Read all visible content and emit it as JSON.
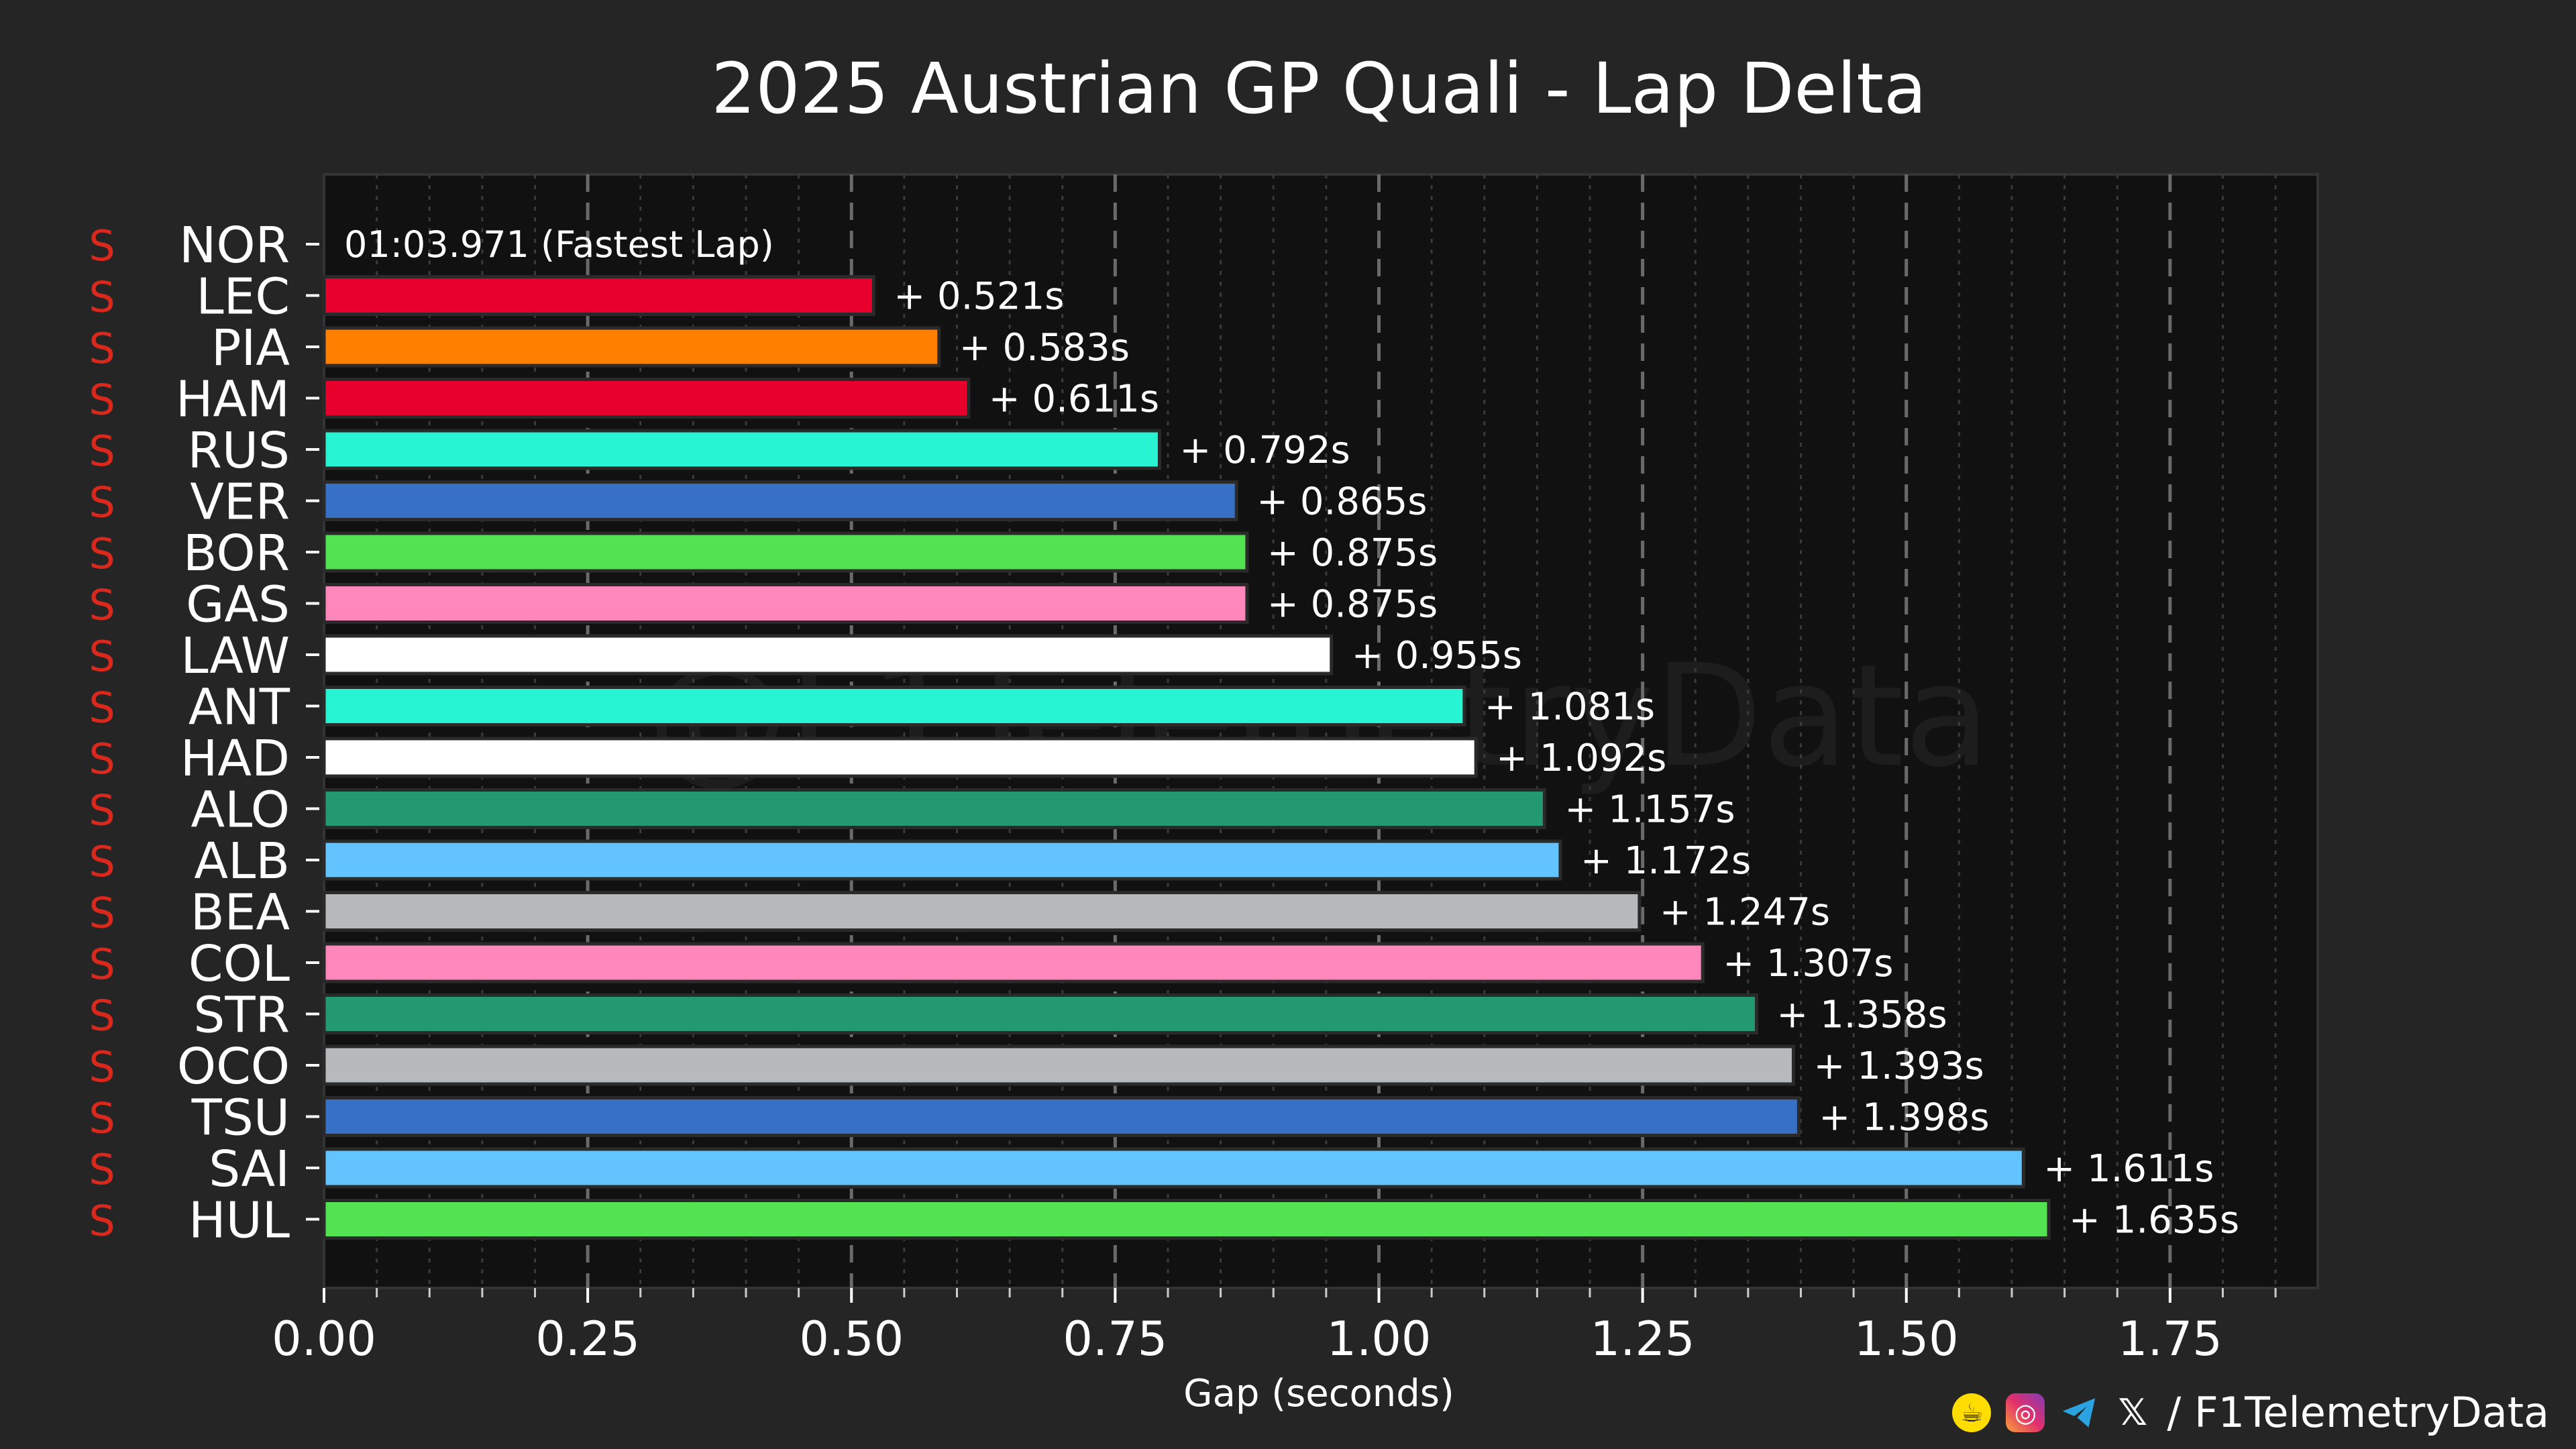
{
  "chart_data": {
    "type": "bar",
    "orientation": "horizontal",
    "title": "2025 Austrian GP Quali - Lap Delta",
    "xlabel": "Gap (seconds)",
    "ylabel": "",
    "xlim": [
      0,
      1.89
    ],
    "xticks": [
      0.0,
      0.25,
      0.5,
      0.75,
      1.0,
      1.25,
      1.5,
      1.75
    ],
    "xtick_labels": [
      "0.00",
      "0.25",
      "0.50",
      "0.75",
      "1.00",
      "1.25",
      "1.50",
      "1.75"
    ],
    "grid": "vertical dashed at major ticks",
    "watermark": "@F1TelemetryData",
    "fastest_lap_label": "01:03.971 (Fastest Lap)",
    "drivers": [
      {
        "code": "NOR",
        "tyre": "S",
        "gap": 0.0,
        "label": "",
        "color": "#ff8000"
      },
      {
        "code": "LEC",
        "tyre": "S",
        "gap": 0.521,
        "label": "+ 0.521s",
        "color": "#e8002d"
      },
      {
        "code": "PIA",
        "tyre": "S",
        "gap": 0.583,
        "label": "+ 0.583s",
        "color": "#ff8000"
      },
      {
        "code": "HAM",
        "tyre": "S",
        "gap": 0.611,
        "label": "+ 0.611s",
        "color": "#e8002d"
      },
      {
        "code": "RUS",
        "tyre": "S",
        "gap": 0.792,
        "label": "+ 0.792s",
        "color": "#27f4d2"
      },
      {
        "code": "VER",
        "tyre": "S",
        "gap": 0.865,
        "label": "+ 0.865s",
        "color": "#3671c6"
      },
      {
        "code": "BOR",
        "tyre": "S",
        "gap": 0.875,
        "label": "+ 0.875s",
        "color": "#52e252"
      },
      {
        "code": "GAS",
        "tyre": "S",
        "gap": 0.875,
        "label": "+ 0.875s",
        "color": "#ff87bc"
      },
      {
        "code": "LAW",
        "tyre": "S",
        "gap": 0.955,
        "label": "+ 0.955s",
        "color": "#ffffff"
      },
      {
        "code": "ANT",
        "tyre": "S",
        "gap": 1.081,
        "label": "+ 1.081s",
        "color": "#27f4d2"
      },
      {
        "code": "HAD",
        "tyre": "S",
        "gap": 1.092,
        "label": "+ 1.092s",
        "color": "#ffffff"
      },
      {
        "code": "ALO",
        "tyre": "S",
        "gap": 1.157,
        "label": "+ 1.157s",
        "color": "#229971"
      },
      {
        "code": "ALB",
        "tyre": "S",
        "gap": 1.172,
        "label": "+ 1.172s",
        "color": "#64c4ff"
      },
      {
        "code": "BEA",
        "tyre": "S",
        "gap": 1.247,
        "label": "+ 1.247s",
        "color": "#b6babd"
      },
      {
        "code": "COL",
        "tyre": "S",
        "gap": 1.307,
        "label": "+ 1.307s",
        "color": "#ff87bc"
      },
      {
        "code": "STR",
        "tyre": "S",
        "gap": 1.358,
        "label": "+ 1.358s",
        "color": "#229971"
      },
      {
        "code": "OCO",
        "tyre": "S",
        "gap": 1.393,
        "label": "+ 1.393s",
        "color": "#b6babd"
      },
      {
        "code": "TSU",
        "tyre": "S",
        "gap": 1.398,
        "label": "+ 1.398s",
        "color": "#3671c6"
      },
      {
        "code": "SAI",
        "tyre": "S",
        "gap": 1.611,
        "label": "+ 1.611s",
        "color": "#64c4ff"
      },
      {
        "code": "HUL",
        "tyre": "S",
        "gap": 1.635,
        "label": "+ 1.635s",
        "color": "#52e252"
      }
    ]
  },
  "colors": {
    "background": "#252525",
    "plot_background": "#111111",
    "tyre_soft": "#da291c",
    "grid": "#6a6a6a"
  },
  "footer": {
    "handle": "/ F1TelemetryData",
    "icons": [
      "buymeacoffee-icon",
      "instagram-icon",
      "telegram-icon",
      "x-icon"
    ]
  }
}
